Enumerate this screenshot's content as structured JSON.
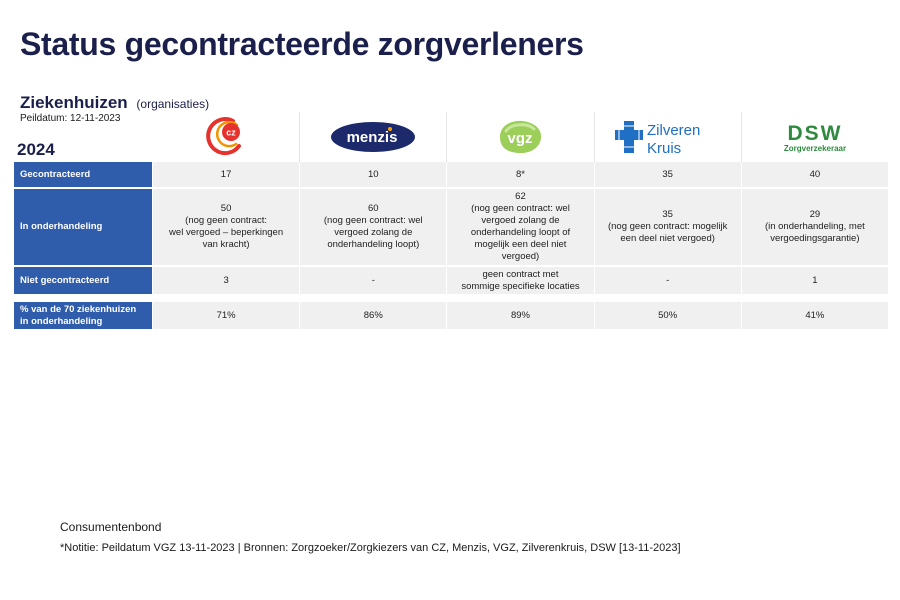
{
  "title": "Status gecontracteerde zorgverleners",
  "subtitle": "Ziekenhuizen",
  "subtitle_note": "(organisaties)",
  "peildatum": "Peildatum: 12-11-2023",
  "year": "2024",
  "insurers": [
    {
      "name": "CZ",
      "logo_text": "cz",
      "color": "#e5322d"
    },
    {
      "name": "Menzis",
      "logo_text": "menzis",
      "color": "#1c2a6b"
    },
    {
      "name": "VGZ",
      "logo_text": "vgz",
      "color": "#33b24a"
    },
    {
      "name": "Zilveren Kruis",
      "logo_text_1": "Zilveren",
      "logo_text_2": "Kruis",
      "color": "#1f6fc4"
    },
    {
      "name": "DSW",
      "logo_text": "DSW",
      "logo_sub": "Zorgverzekeraar",
      "color": "#2e8b3e"
    }
  ],
  "rows": [
    {
      "label": "Gecontracteerd",
      "values": [
        "17",
        "10",
        "8*",
        "35",
        "40"
      ]
    },
    {
      "label": "In onderhandeling",
      "values": [
        "50\n(nog geen contract:\nwel vergoed – beperkingen\nvan kracht)",
        "60\n(nog geen contract: wel\nvergoed zolang de\nonderhandeling loopt)",
        "62\n(nog geen contract: wel\nvergoed zolang de\nonderhandeling loopt of\nmogelijk een deel niet\nvergoed)",
        "35\n(nog geen contract: mogelijk\neen deel niet vergoed)",
        "29\n(in onderhandeling, met\nvergoedingsgarantie)"
      ]
    },
    {
      "label": "Niet gecontracteerd",
      "values": [
        "3",
        "-",
        "geen contract met\nsommige specifieke locaties",
        "-",
        "1"
      ]
    },
    {
      "label": "% van de 70 ziekenhuizen\nin onderhandeling",
      "values": [
        "71%",
        "86%",
        "89%",
        "50%",
        "41%"
      ]
    }
  ],
  "source_org": "Consumentenbond",
  "footnote": "*Notitie: Peildatum VGZ 13-11-2023  |  Bronnen: Zorgzoeker/Zorgkiezers van CZ, Menzis, VGZ, Zilverenkruis, DSW [13-11-2023]"
}
